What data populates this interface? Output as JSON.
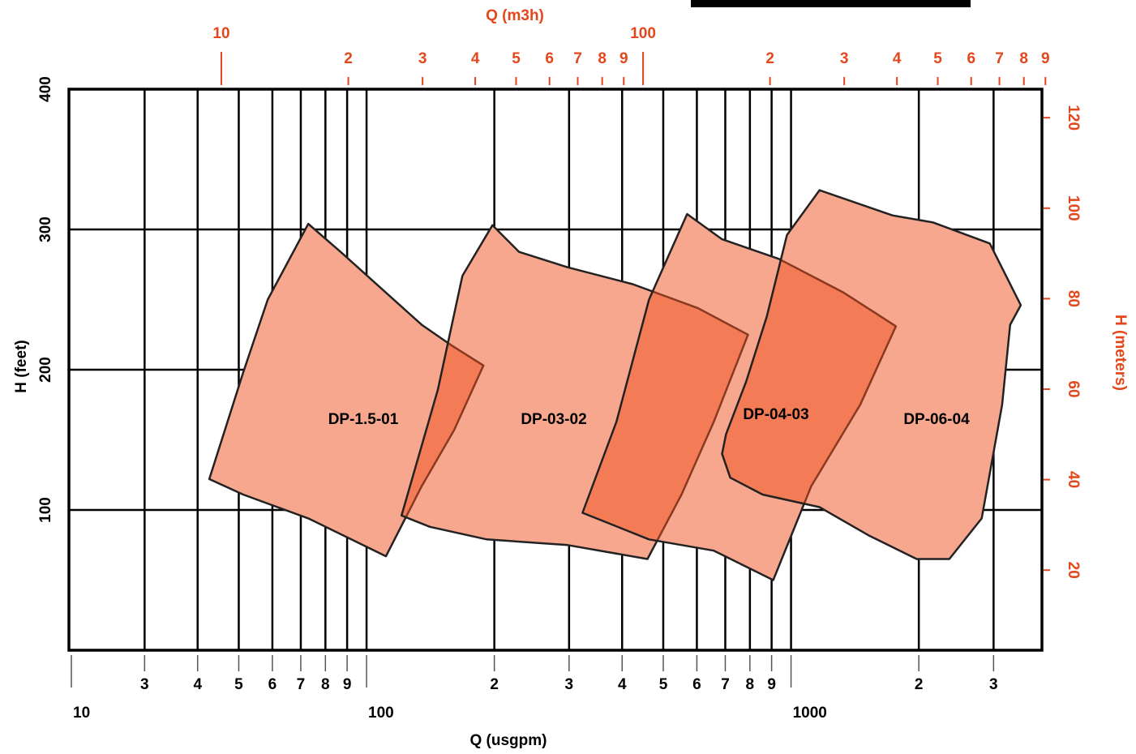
{
  "chart_data": {
    "type": "region",
    "x_label": "Q (usgpm)",
    "x2_label": "Q (m3h)",
    "y_label": "H (feet)",
    "y2_label": "H (meters)",
    "xscale": "log",
    "grid": true,
    "xlim": [
      19.9,
      3900
    ],
    "xticks": [
      10,
      {
        "value": 30,
        "label": "3"
      },
      {
        "value": 40,
        "label": "4"
      },
      {
        "value": 50,
        "label": "5"
      },
      {
        "value": 60,
        "label": "6"
      },
      {
        "value": 70,
        "label": "7"
      },
      {
        "value": 80,
        "label": "8"
      },
      {
        "value": 90,
        "label": "9"
      },
      100,
      {
        "value": 200,
        "label": "2"
      },
      {
        "value": 300,
        "label": "3"
      },
      {
        "value": 400,
        "label": "4"
      },
      {
        "value": 500,
        "label": "5"
      },
      {
        "value": 600,
        "label": "6"
      },
      {
        "value": 700,
        "label": "7"
      },
      {
        "value": 800,
        "label": "8"
      },
      {
        "value": 900,
        "label": "9"
      },
      1000,
      {
        "value": 2000,
        "label": "2"
      },
      {
        "value": 3000,
        "label": "3"
      }
    ],
    "x2lim": [
      4.35,
      883
    ],
    "x2ticks": [
      10,
      {
        "value": 20,
        "label": "2"
      },
      {
        "value": 30,
        "label": "3"
      },
      {
        "value": 40,
        "label": "4"
      },
      {
        "value": 50,
        "label": "5"
      },
      {
        "value": 60,
        "label": "6"
      },
      {
        "value": 70,
        "label": "7"
      },
      {
        "value": 80,
        "label": "8"
      },
      {
        "value": 90,
        "label": "9"
      },
      100,
      {
        "value": 200,
        "label": "2"
      },
      {
        "value": 300,
        "label": "3"
      },
      {
        "value": 400,
        "label": "4"
      },
      {
        "value": 500,
        "label": "5"
      },
      {
        "value": 600,
        "label": "6"
      },
      {
        "value": 700,
        "label": "7"
      },
      {
        "value": 800,
        "label": "8"
      },
      {
        "value": 900,
        "label": "9"
      }
    ],
    "ylim": [
      0,
      400
    ],
    "yticks": [
      100,
      200,
      300,
      400
    ],
    "y2lim": [
      2.3,
      126.3
    ],
    "y2ticks": [
      20,
      40,
      60,
      80,
      100,
      120
    ],
    "color": "#f0501e",
    "series": [
      {
        "name": "DP-1.5-01",
        "x": [
          42.6,
          51.2,
          58.5,
          72.9,
          86.9,
          134.9,
          157.4,
          188.5,
          160.8,
          134.9,
          111.1,
          72.9,
          51.2
        ],
        "y": [
          122,
          198,
          250,
          304,
          284,
          232,
          218,
          203,
          157,
          117,
          67,
          94,
          111
        ]
      },
      {
        "name": "DP-03-02",
        "x": [
          120.9,
          147.3,
          168.2,
          197.9,
          228.8,
          297.7,
          423.6,
          602.6,
          791.9,
          658,
          552,
          459,
          297.7,
          191.9,
          141
        ],
        "y": [
          96,
          186,
          267,
          303,
          284,
          273,
          261,
          244,
          225,
          163,
          111,
          65,
          75,
          79,
          88
        ]
      },
      {
        "name": "DP-04-03",
        "x": [
          322.6,
          388,
          462.7,
          569,
          687.8,
          935.8,
          1330,
          1766,
          1455,
          1116,
          907.8,
          658,
          462.7
        ],
        "y": [
          98,
          163,
          250,
          311,
          293,
          279,
          255,
          231,
          175,
          117,
          50,
          71,
          79
        ]
      },
      {
        "name": "DP-06-04",
        "x": [
          687.8,
          719,
          857,
          1167,
          1520,
          1977,
          2360,
          2813,
          3143,
          3283,
          3477,
          2939,
          2162,
          1734,
          1167,
          978,
          877,
          785,
          703
        ],
        "y": [
          140,
          123,
          111,
          102,
          82,
          65,
          65,
          94,
          175,
          232,
          246,
          290,
          305,
          310,
          328,
          296,
          238,
          192,
          154
        ]
      }
    ]
  }
}
